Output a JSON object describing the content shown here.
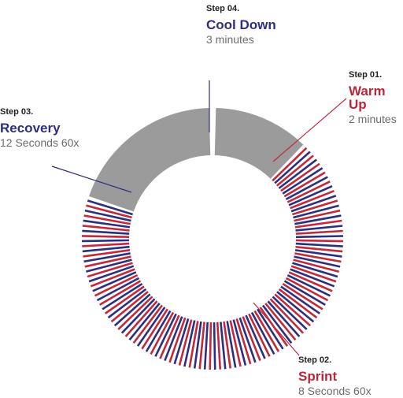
{
  "colors": {
    "cooldown": "#9b9b9b",
    "warmup": "#9b9b9b",
    "sprint": "#c3283b",
    "recovery": "#2b2f80",
    "leader_red": "#c3283b",
    "leader_navy": "#2b2f80",
    "text_navy": "#2b2f80",
    "text_red": "#b8283a"
  },
  "steps": [
    {
      "id": "warmup",
      "step": "Step 01.",
      "name": "Warm Up",
      "detail": "2 minutes"
    },
    {
      "id": "sprint",
      "step": "Step 02.",
      "name": "Sprint",
      "detail": "8 Seconds 60x"
    },
    {
      "id": "recovery",
      "step": "Step 03.",
      "name": "Recovery",
      "detail": "12 Seconds 60x"
    },
    {
      "id": "cooldown",
      "step": "Step 04.",
      "name": "Cool Down",
      "detail": "3 minutes"
    }
  ],
  "chart_data": {
    "type": "donut",
    "unit": "seconds",
    "segments": [
      {
        "name": "Warm Up",
        "duration": 120
      },
      {
        "name": "Interval",
        "duration": 1200,
        "pattern": {
          "sprint": 8,
          "recovery": 12,
          "repeats": 60
        }
      },
      {
        "name": "Cool Down",
        "duration": 180
      }
    ]
  }
}
